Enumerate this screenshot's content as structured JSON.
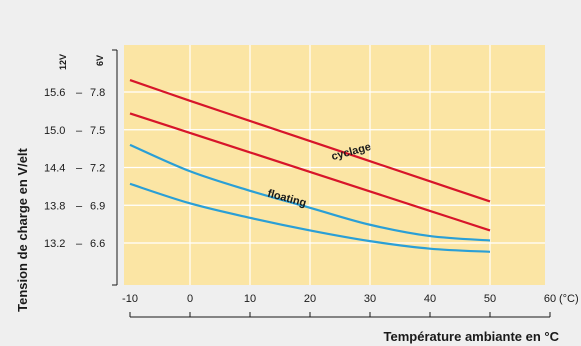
{
  "chart_data": {
    "type": "line",
    "title": "",
    "xlabel": "Température ambiante en °C",
    "ylabel": "Tension de charge en V/elt",
    "xlim": [
      -10,
      60
    ],
    "x_ticks": [
      -10,
      0,
      10,
      20,
      30,
      40,
      50,
      60
    ],
    "x_tick_labels": [
      "-10",
      "0",
      "10",
      "20",
      "30",
      "40",
      "50",
      "60"
    ],
    "x_unit": "(°C)",
    "ylim_12V": [
      12.4,
      16.4
    ],
    "y_ticks_12V": [
      15.6,
      15.0,
      14.4,
      13.8,
      13.2
    ],
    "y_tick_labels_12V": [
      "15.6",
      "15.0",
      "14.4",
      "13.8",
      "13.2"
    ],
    "y_tick_labels_6V": [
      "7.8",
      "7.5",
      "7.2",
      "6.9",
      "6.6"
    ],
    "column_headers": [
      "12V",
      "6V"
    ],
    "grid": true,
    "background_color": "#fbe5a4",
    "grid_color": "#ffffff",
    "annotations": [
      {
        "text": "cyclage",
        "x": 27,
        "y": 14.6,
        "angle": -15
      },
      {
        "text": "floating",
        "x": 16,
        "y": 13.86,
        "angle": 15
      }
    ],
    "series": [
      {
        "color": "#d7152a",
        "group": "cyclage",
        "x": [
          -10,
          0,
          10,
          20,
          30,
          40,
          50
        ],
        "values": [
          15.79,
          15.46,
          15.14,
          14.82,
          14.5,
          14.18,
          13.86
        ]
      },
      {
        "color": "#d7152a",
        "group": "cyclage",
        "x": [
          -10,
          0,
          10,
          20,
          30,
          40,
          50
        ],
        "values": [
          15.26,
          14.95,
          14.64,
          14.33,
          14.02,
          13.71,
          13.4
        ]
      },
      {
        "color": "#2a9fd6",
        "group": "floating",
        "x": [
          -10,
          0,
          10,
          20,
          30,
          40,
          50
        ],
        "values": [
          14.76,
          14.34,
          14.03,
          13.76,
          13.49,
          13.31,
          13.24
        ]
      },
      {
        "color": "#2a9fd6",
        "group": "floating",
        "x": [
          -10,
          0,
          10,
          20,
          30,
          40,
          50
        ],
        "values": [
          14.14,
          13.83,
          13.6,
          13.4,
          13.23,
          13.11,
          13.06
        ]
      }
    ]
  }
}
